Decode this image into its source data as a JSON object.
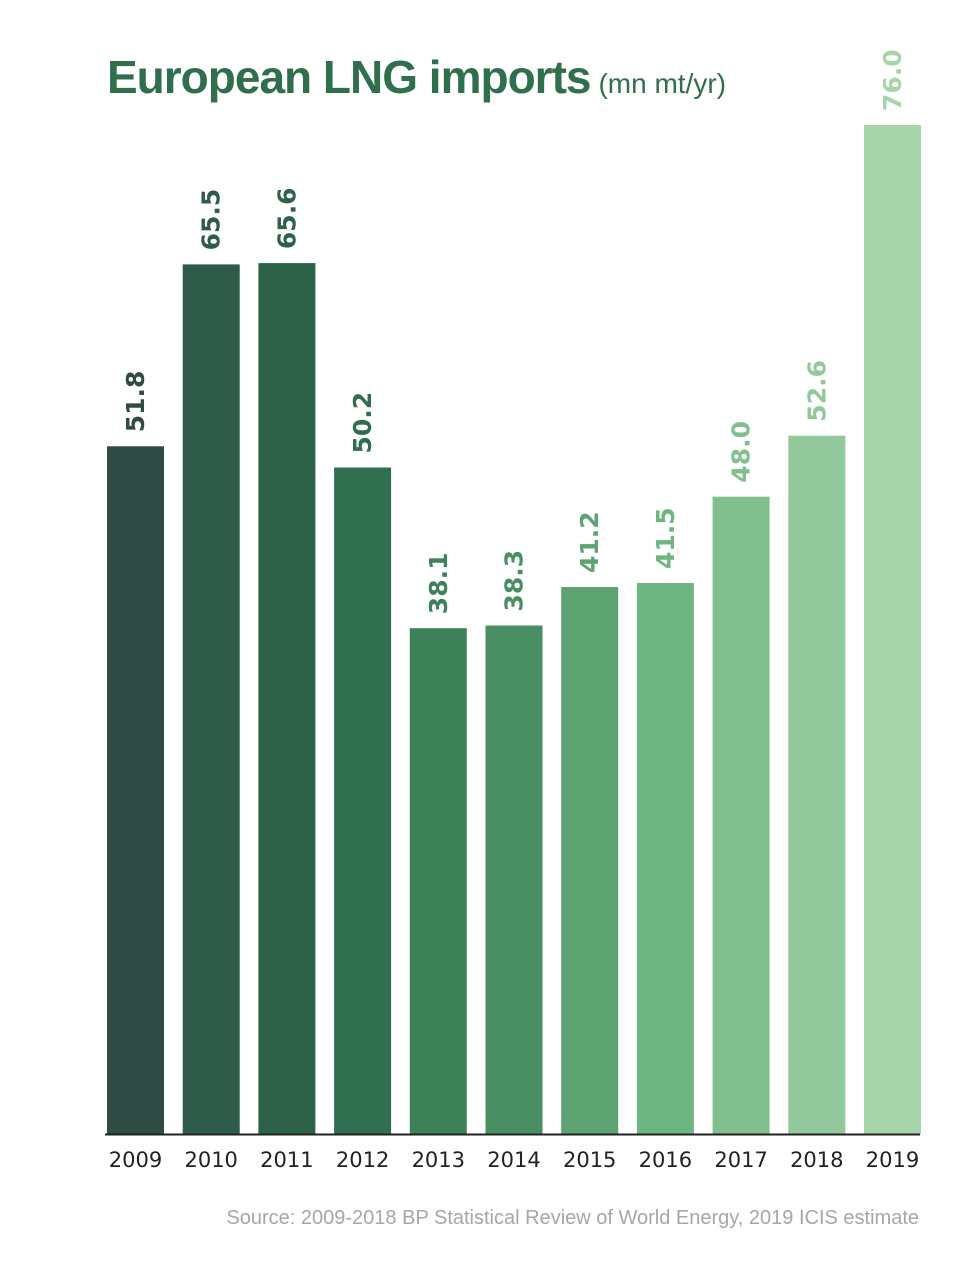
{
  "title": "European LNG imports",
  "title_units": "(mn mt/yr)",
  "source": "Source: 2009-2018 BP Statistical Review of World Energy, 2019 ICIS estimate",
  "chart_data": {
    "type": "bar",
    "title": "European LNG imports",
    "units": "(mn mt/yr)",
    "xlabel": "",
    "ylabel": "",
    "ylim": [
      0,
      76
    ],
    "grid": false,
    "categories": [
      "2009",
      "2010",
      "2011",
      "2012",
      "2013",
      "2014",
      "2015",
      "2016",
      "2017",
      "2018",
      "2019"
    ],
    "values": [
      51.8,
      65.5,
      65.6,
      50.2,
      38.1,
      38.3,
      41.2,
      41.5,
      48.0,
      52.6,
      76.0
    ],
    "value_labels": [
      "51.8",
      "65.5",
      "65.6",
      "50.2",
      "38.1",
      "38.3",
      "41.2",
      "41.5",
      "48.0",
      "52.6",
      "76.0"
    ],
    "bar_colors": [
      "#2f4b44",
      "#2f5b4a",
      "#2d6148",
      "#2f6f4f",
      "#3d8158",
      "#4a8e63",
      "#5ea372",
      "#6db581",
      "#81c08e",
      "#93c89d",
      "#a5d5a8"
    ],
    "label_colors": [
      "#2f4b44",
      "#2f5b4a",
      "#2d6148",
      "#2f6f4f",
      "#3d8158",
      "#4a8e63",
      "#5ea372",
      "#6db581",
      "#81c08e",
      "#93c89d",
      "#a5d5a8"
    ]
  }
}
